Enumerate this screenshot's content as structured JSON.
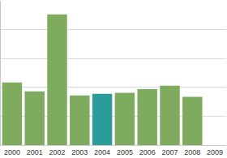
{
  "chart_data": {
    "type": "bar",
    "categories": [
      "2000",
      "2001",
      "2002",
      "2003",
      "2004",
      "2005",
      "2006",
      "2007",
      "2008",
      "2009"
    ],
    "values": [
      2.17,
      1.86,
      4.53,
      1.72,
      1.78,
      1.81,
      1.94,
      2.06,
      1.67,
      null
    ],
    "colors": [
      "#7eab5e",
      "#7eab5e",
      "#7eab5e",
      "#7eab5e",
      "#2e9b9b",
      "#7eab5e",
      "#7eab5e",
      "#7eab5e",
      "#7eab5e",
      "#7eab5e"
    ],
    "ylim": [
      0,
      5
    ],
    "yticks": [
      0,
      1,
      2,
      3,
      4,
      5
    ],
    "grid": true,
    "tick_labels": "x"
  }
}
